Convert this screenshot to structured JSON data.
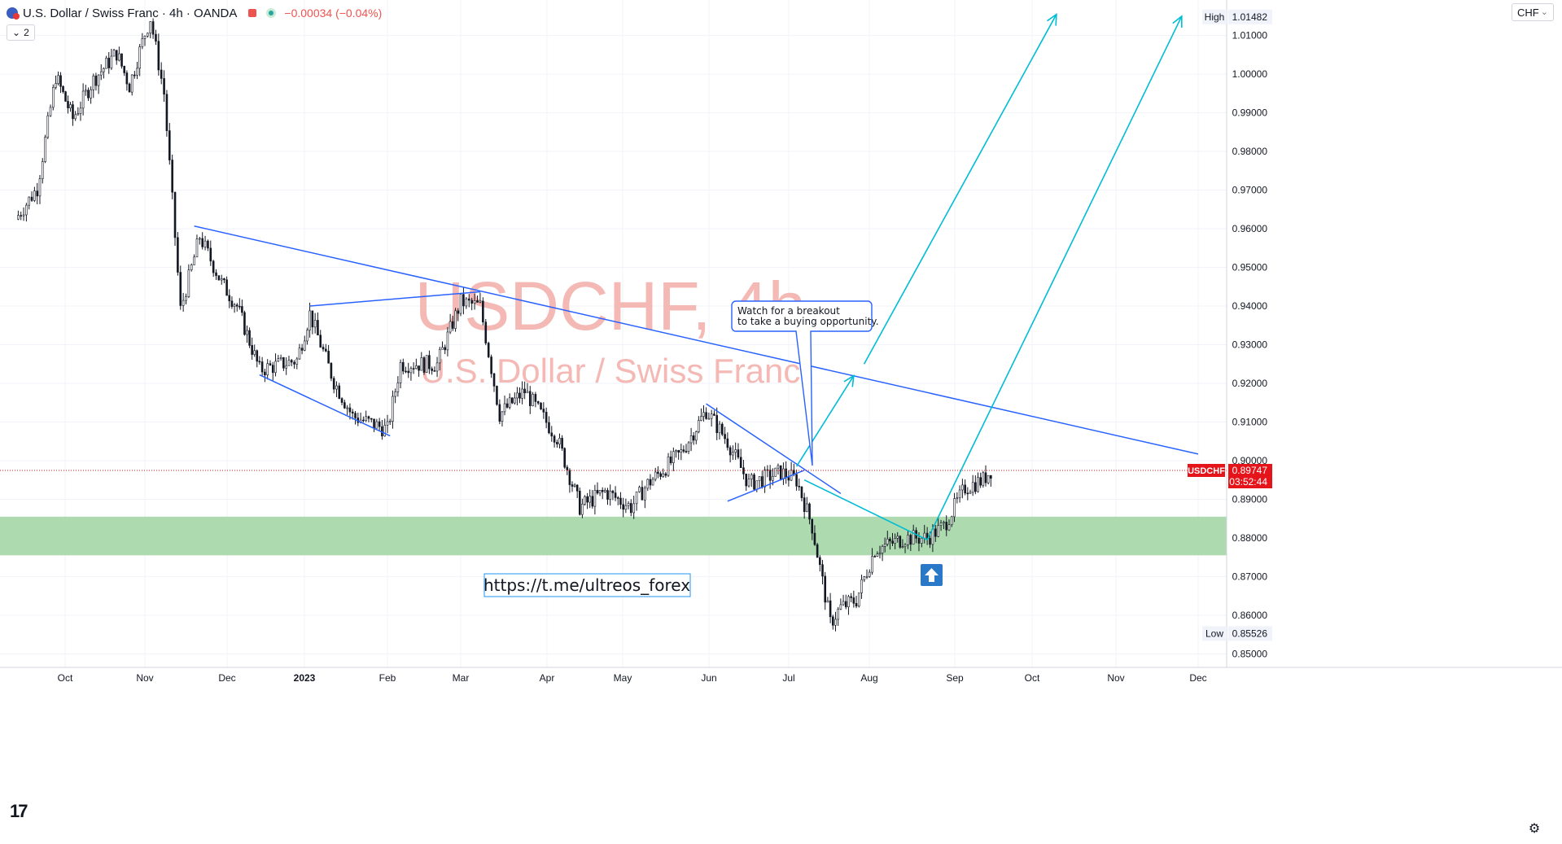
{
  "header": {
    "symbol_title": "U.S. Dollar / Swiss Franc · 4h · OANDA",
    "change_text": "−0.00034 (−0.04%)",
    "indicator_count": "2",
    "currency_label": "CHF"
  },
  "watermark": {
    "line1": "USDCHF, 4h",
    "line2": "U.S. Dollar / Swiss Franc"
  },
  "annotations": {
    "callout_text_line1": "Watch for a breakout",
    "callout_text_line2": "to take a buying opportunity.",
    "link_text": "https://t.me/ultreos_forex"
  },
  "price_scale": {
    "high_label": "High",
    "high_value": "1.01482",
    "low_label": "Low",
    "low_value": "0.85526",
    "last_symbol": "USDCHF",
    "last_value": "0.89747",
    "countdown": "03:52:44"
  },
  "colors": {
    "up_down_candle": "#131722",
    "trendline": "#2962ff",
    "projection_arrow": "#00bcd4",
    "zone_fill": "#a5d6a7",
    "last_price": "#e5131a",
    "watermark": "#f4b9b5"
  },
  "icons": {
    "logo": "tradingview-logo-icon",
    "settings": "gear-icon",
    "buy_marker": "up-arrow-icon"
  },
  "chart_data": {
    "type": "candlestick",
    "instrument": "USDCHF",
    "timeframe": "4h",
    "y_ticks": [
      "1.01000",
      "1.00000",
      "0.99000",
      "0.98000",
      "0.97000",
      "0.96000",
      "0.95000",
      "0.94000",
      "0.93000",
      "0.92000",
      "0.91000",
      "0.90000",
      "0.89000",
      "0.88000",
      "0.87000",
      "0.86000",
      "0.85000"
    ],
    "x_ticks": [
      "Oct",
      "Nov",
      "Dec",
      "2023",
      "Feb",
      "Mar",
      "Apr",
      "May",
      "Jun",
      "Jul",
      "Aug",
      "Sep",
      "Oct",
      "Nov",
      "Dec"
    ],
    "ylim": [
      0.8465,
      1.0192
    ],
    "price_path": [
      [
        "2022-09-15",
        0.9625
      ],
      [
        "2022-09-22",
        0.9705
      ],
      [
        "2022-09-28",
        0.9995
      ],
      [
        "2022-10-04",
        0.9885
      ],
      [
        "2022-10-12",
        0.9985
      ],
      [
        "2022-10-21",
        1.0055
      ],
      [
        "2022-10-26",
        0.997
      ],
      [
        "2022-11-01",
        1.0105
      ],
      [
        "2022-11-03",
        1.0145
      ],
      [
        "2022-11-08",
        0.995
      ],
      [
        "2022-11-12",
        0.958
      ],
      [
        "2022-11-14",
        0.939
      ],
      [
        "2022-11-21",
        0.958
      ],
      [
        "2022-11-29",
        0.946
      ],
      [
        "2022-12-05",
        0.94
      ],
      [
        "2022-12-14",
        0.9235
      ],
      [
        "2022-12-29",
        0.926
      ],
      [
        "2023-01-03",
        0.938
      ],
      [
        "2023-01-12",
        0.9205
      ],
      [
        "2023-01-19",
        0.9115
      ],
      [
        "2023-02-01",
        0.908
      ],
      [
        "2023-02-06",
        0.925
      ],
      [
        "2023-02-20",
        0.925
      ],
      [
        "2023-03-01",
        0.941
      ],
      [
        "2023-03-08",
        0.94
      ],
      [
        "2023-03-15",
        0.912
      ],
      [
        "2023-03-24",
        0.918
      ],
      [
        "2023-04-05",
        0.906
      ],
      [
        "2023-04-14",
        0.888
      ],
      [
        "2023-04-24",
        0.892
      ],
      [
        "2023-05-04",
        0.888
      ],
      [
        "2023-05-10",
        0.894
      ],
      [
        "2023-05-22",
        0.902
      ],
      [
        "2023-05-31",
        0.913
      ],
      [
        "2023-06-08",
        0.905
      ],
      [
        "2023-06-16",
        0.894
      ],
      [
        "2023-06-28",
        0.897
      ],
      [
        "2023-07-04",
        0.895
      ],
      [
        "2023-07-10",
        0.883
      ],
      [
        "2023-07-17",
        0.858
      ],
      [
        "2023-07-21",
        0.862
      ],
      [
        "2023-07-27",
        0.864
      ],
      [
        "2023-08-03",
        0.877
      ],
      [
        "2023-08-14",
        0.88
      ],
      [
        "2023-08-22",
        0.88
      ],
      [
        "2023-08-28",
        0.883
      ],
      [
        "2023-09-05",
        0.893
      ],
      [
        "2023-09-12",
        0.895
      ],
      [
        "2023-09-15",
        0.8975
      ]
    ],
    "high": 1.01482,
    "low": 0.85526,
    "last": 0.89747,
    "zones": [
      {
        "from": 0.8755,
        "to": 0.8855
      }
    ]
  }
}
